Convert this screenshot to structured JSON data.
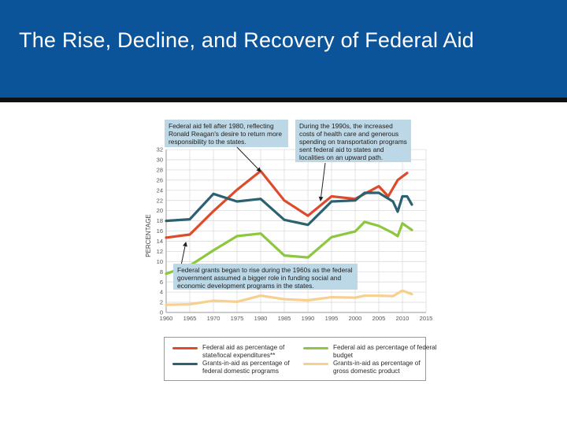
{
  "page": {
    "title": "The Rise, Decline, and Recovery of Federal Aid"
  },
  "annotations": {
    "fell_1980": "Federal aid fell after 1980, reflecting Ronald Reagan's desire to return more responsibility to the states.",
    "rise_1990s": "During the 1990s, the increased costs of health care and generous spending on transportation programs sent federal aid to states and localities on an upward path.",
    "rise_1960s": "Federal grants began to rise during the 1960s as the federal  government assumed a bigger role in funding social and economic development programs in the states."
  },
  "chart_data": {
    "type": "line",
    "title": "The Rise, Decline, and Recovery of Federal Aid",
    "xlabel": "",
    "ylabel": "PERCENTAGE",
    "xlim": [
      1960,
      2015
    ],
    "ylim": [
      0,
      32
    ],
    "xticks": [
      1960,
      1965,
      1970,
      1975,
      1980,
      1985,
      1990,
      1995,
      2000,
      2005,
      2010,
      2015
    ],
    "yticks": [
      0,
      2,
      4,
      6,
      8,
      10,
      12,
      14,
      16,
      18,
      20,
      22,
      24,
      26,
      28,
      30,
      32
    ],
    "grid": true,
    "legend_position": "bottom",
    "series": [
      {
        "name": "Federal aid as percentage of state/local expenditures**",
        "color": "#de4b2c",
        "x": [
          1960,
          1965,
          1970,
          1975,
          1980,
          1985,
          1990,
          1995,
          2000,
          2002,
          2005,
          2007,
          2009,
          2011
        ],
        "values": [
          14.7,
          15.3,
          19.9,
          24.1,
          27.8,
          22.0,
          19.0,
          22.8,
          22.3,
          23.3,
          24.8,
          22.8,
          26.0,
          27.4
        ]
      },
      {
        "name": "Grants-in-aid as percentage of federal domestic programs",
        "color": "#2c6270",
        "x": [
          1960,
          1965,
          1970,
          1975,
          1980,
          1985,
          1990,
          1995,
          2000,
          2002,
          2005,
          2008,
          2009,
          2010,
          2011,
          2012
        ],
        "values": [
          18.0,
          18.3,
          23.3,
          21.8,
          22.3,
          18.2,
          17.2,
          21.8,
          22.0,
          23.5,
          23.5,
          21.8,
          19.8,
          22.8,
          22.8,
          21.2
        ]
      },
      {
        "name": "Federal aid as percentage of federal budget",
        "color": "#8dc63f",
        "x": [
          1960,
          1965,
          1970,
          1975,
          1980,
          1985,
          1990,
          1995,
          2000,
          2002,
          2005,
          2008,
          2009,
          2010,
          2012
        ],
        "values": [
          7.6,
          9.2,
          12.2,
          15.0,
          15.5,
          11.2,
          10.8,
          14.8,
          15.9,
          17.8,
          17.0,
          15.6,
          15.0,
          17.5,
          16.2
        ]
      },
      {
        "name": "Grants-in-aid as percentage of gross domestic product",
        "color": "#f7cf8f",
        "x": [
          1960,
          1965,
          1970,
          1975,
          1980,
          1985,
          1990,
          1995,
          2000,
          2002,
          2005,
          2008,
          2010,
          2012
        ],
        "values": [
          1.5,
          1.6,
          2.3,
          2.1,
          3.3,
          2.6,
          2.4,
          3.0,
          2.9,
          3.3,
          3.3,
          3.2,
          4.3,
          3.6
        ]
      }
    ]
  }
}
